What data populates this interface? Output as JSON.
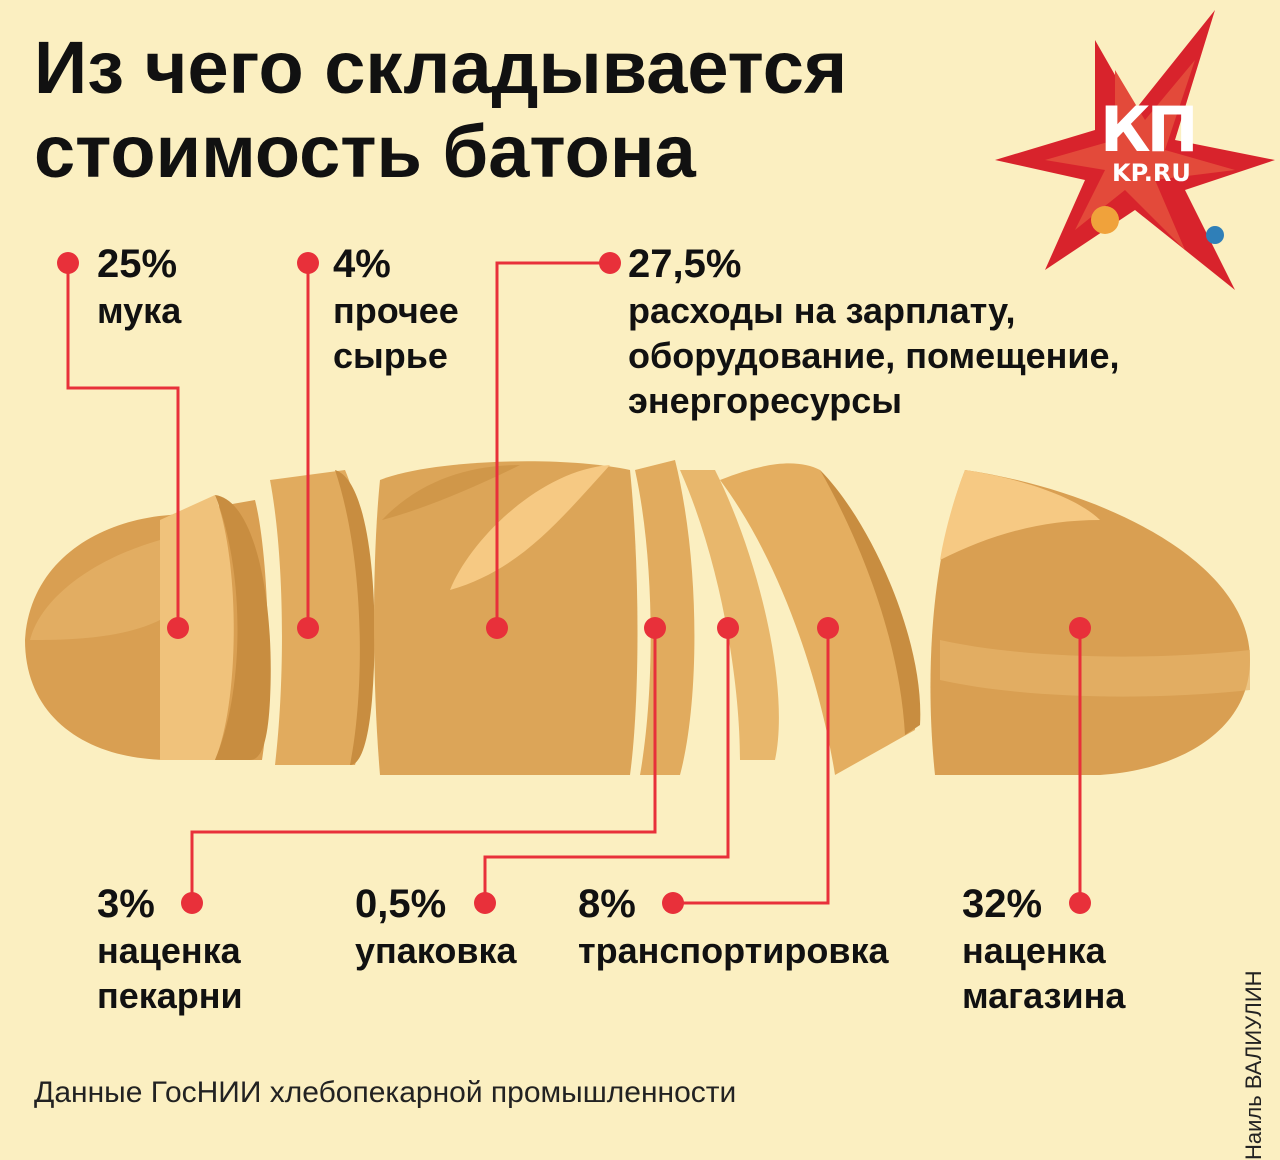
{
  "title": "Из чего складывается стоимость батона",
  "logo": {
    "text": "КП",
    "site": "KP.RU"
  },
  "source": "Данные ГосНИИ хлебопекарной промышленности",
  "author": "Наиль ВАЛИУЛИН",
  "colors": {
    "accent": "#e8303a",
    "background": "#fbefc1",
    "crust": "#d8a45a",
    "crumb": "#f6c983"
  },
  "chart_data": {
    "type": "bar",
    "categories": [
      "мука",
      "прочее сырье",
      "расходы на зарплату, оборудование, помещение, энергоресурсы",
      "наценка пекарни",
      "упаковка",
      "транспортировка",
      "наценка магазина"
    ],
    "values": [
      25,
      4,
      27.5,
      3,
      0.5,
      8,
      32
    ],
    "unit": "%",
    "segments": [
      {
        "pct": "25%",
        "lines": [
          "мука"
        ]
      },
      {
        "pct": "4%",
        "lines": [
          "прочее",
          "сырье"
        ]
      },
      {
        "pct": "27,5%",
        "lines": [
          "расходы на зарплату,",
          "оборудование, помещение,",
          "энергоресурсы"
        ]
      },
      {
        "pct": "3%",
        "lines": [
          "наценка",
          "пекарни"
        ]
      },
      {
        "pct": "0,5%",
        "lines": [
          "упаковка"
        ]
      },
      {
        "pct": "8%",
        "lines": [
          "транспортировка"
        ]
      },
      {
        "pct": "32%",
        "lines": [
          "наценка",
          "магазина"
        ]
      }
    ]
  }
}
